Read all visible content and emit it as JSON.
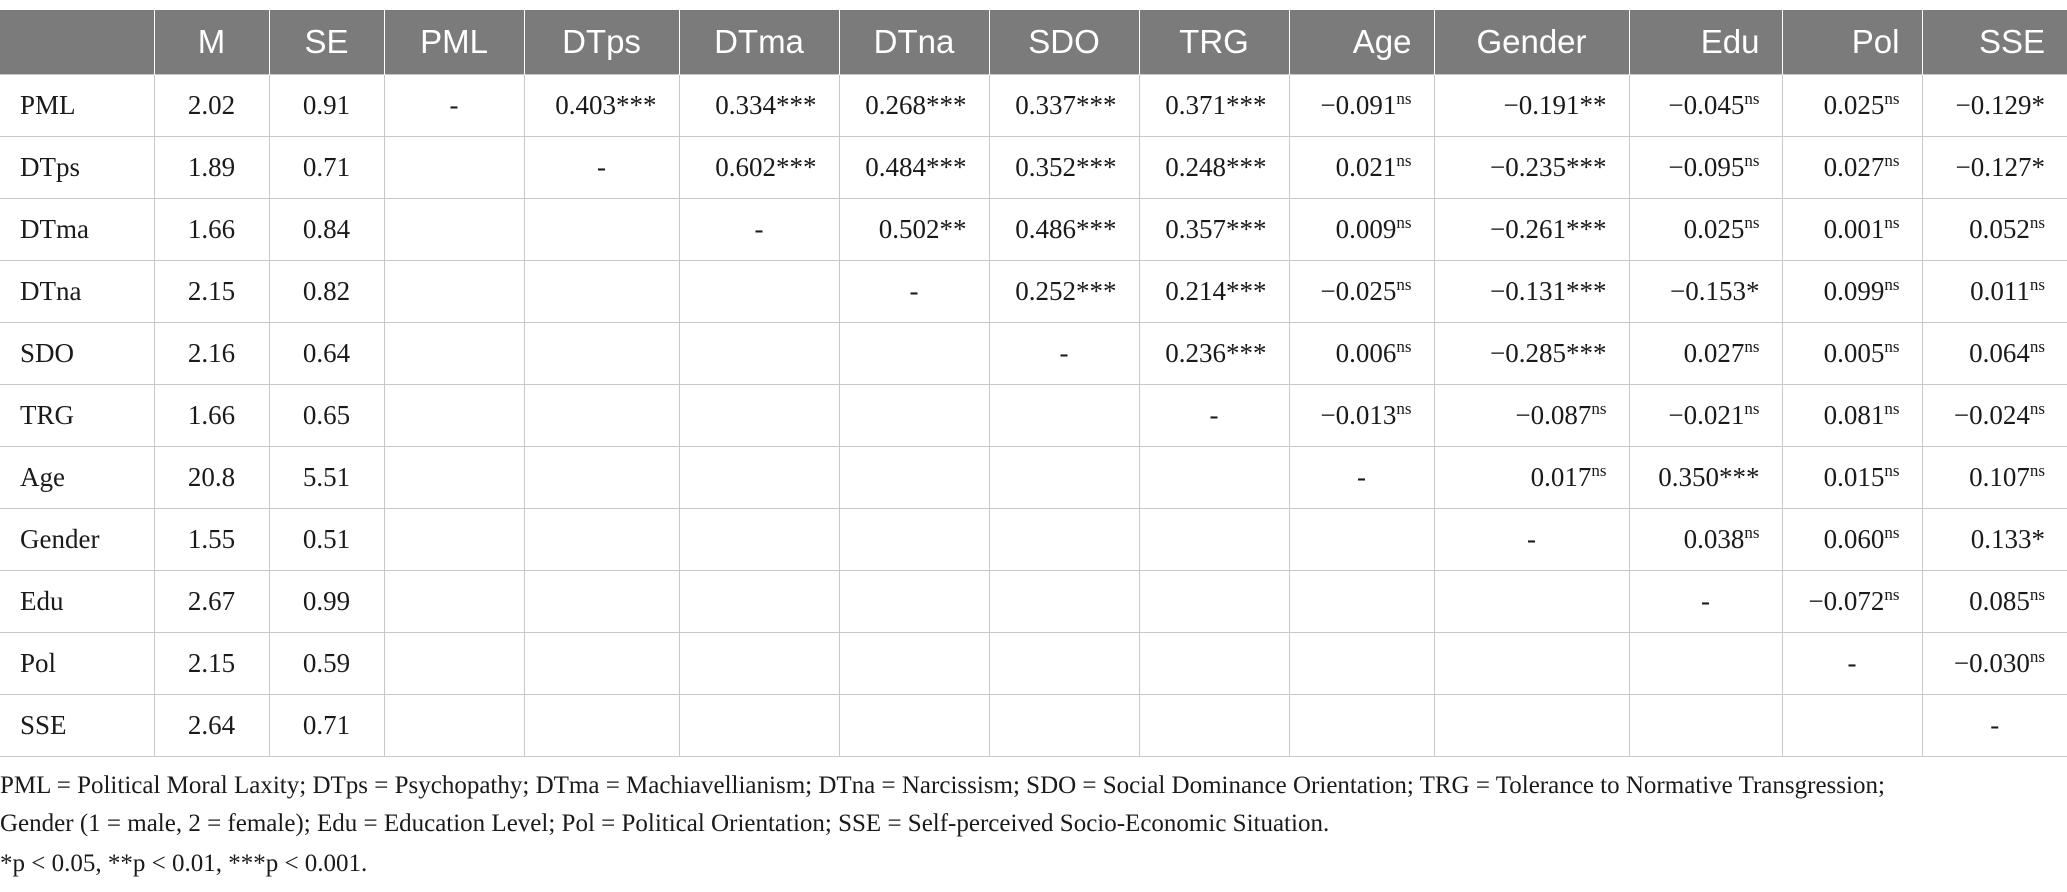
{
  "table": {
    "columns": [
      "",
      "M",
      "SE",
      "PML",
      "DTps",
      "DTma",
      "DTna",
      "SDO",
      "TRG",
      "Age",
      "Gender",
      "Edu",
      "Pol",
      "SSE"
    ],
    "rows": [
      {
        "label": "PML",
        "m": "2.02",
        "se": "0.91",
        "cells": [
          {
            "v": "-"
          },
          {
            "v": "0.403",
            "s": "***"
          },
          {
            "v": "0.334",
            "s": "***"
          },
          {
            "v": "0.268",
            "s": "***"
          },
          {
            "v": "0.337",
            "s": "***"
          },
          {
            "v": "0.371",
            "s": "***"
          },
          {
            "v": "−0.091",
            "s": "ns",
            "sup": true
          },
          {
            "v": "−0.191",
            "s": "**"
          },
          {
            "v": "−0.045",
            "s": "ns",
            "sup": true
          },
          {
            "v": "0.025",
            "s": "ns",
            "sup": true
          },
          {
            "v": "−0.129",
            "s": "*"
          }
        ]
      },
      {
        "label": "DTps",
        "m": "1.89",
        "se": "0.71",
        "cells": [
          {
            "v": ""
          },
          {
            "v": "-"
          },
          {
            "v": "0.602",
            "s": "***"
          },
          {
            "v": "0.484",
            "s": "***"
          },
          {
            "v": "0.352",
            "s": "***"
          },
          {
            "v": "0.248",
            "s": "***"
          },
          {
            "v": "0.021",
            "s": "ns",
            "sup": true
          },
          {
            "v": "−0.235",
            "s": "***"
          },
          {
            "v": "−0.095",
            "s": "ns",
            "sup": true
          },
          {
            "v": "0.027",
            "s": "ns",
            "sup": true
          },
          {
            "v": "−0.127",
            "s": "*"
          }
        ]
      },
      {
        "label": "DTma",
        "m": "1.66",
        "se": "0.84",
        "cells": [
          {
            "v": ""
          },
          {
            "v": ""
          },
          {
            "v": "-"
          },
          {
            "v": "0.502",
            "s": "**"
          },
          {
            "v": "0.486",
            "s": "***"
          },
          {
            "v": "0.357",
            "s": "***"
          },
          {
            "v": "0.009",
            "s": "ns",
            "sup": true
          },
          {
            "v": "−0.261",
            "s": "***"
          },
          {
            "v": "0.025",
            "s": "ns",
            "sup": true
          },
          {
            "v": "0.001",
            "s": "ns",
            "sup": true
          },
          {
            "v": "0.052",
            "s": "ns",
            "sup": true
          }
        ]
      },
      {
        "label": "DTna",
        "m": "2.15",
        "se": "0.82",
        "cells": [
          {
            "v": ""
          },
          {
            "v": ""
          },
          {
            "v": ""
          },
          {
            "v": "-"
          },
          {
            "v": "0.252",
            "s": "***"
          },
          {
            "v": "0.214",
            "s": "***"
          },
          {
            "v": "−0.025",
            "s": "ns",
            "sup": true
          },
          {
            "v": "−0.131",
            "s": "***"
          },
          {
            "v": "−0.153",
            "s": "*"
          },
          {
            "v": "0.099",
            "s": "ns",
            "sup": true
          },
          {
            "v": "0.011",
            "s": "ns",
            "sup": true
          }
        ]
      },
      {
        "label": "SDO",
        "m": "2.16",
        "se": "0.64",
        "cells": [
          {
            "v": ""
          },
          {
            "v": ""
          },
          {
            "v": ""
          },
          {
            "v": ""
          },
          {
            "v": "-"
          },
          {
            "v": "0.236",
            "s": "***"
          },
          {
            "v": "0.006",
            "s": "ns",
            "sup": true
          },
          {
            "v": "−0.285",
            "s": "***"
          },
          {
            "v": "0.027",
            "s": "ns",
            "sup": true
          },
          {
            "v": "0.005",
            "s": "ns",
            "sup": true
          },
          {
            "v": "0.064",
            "s": "ns",
            "sup": true
          }
        ]
      },
      {
        "label": "TRG",
        "m": "1.66",
        "se": "0.65",
        "cells": [
          {
            "v": ""
          },
          {
            "v": ""
          },
          {
            "v": ""
          },
          {
            "v": ""
          },
          {
            "v": ""
          },
          {
            "v": "-"
          },
          {
            "v": "−0.013",
            "s": "ns",
            "sup": true
          },
          {
            "v": "−0.087",
            "s": "ns",
            "sup": true
          },
          {
            "v": "−0.021",
            "s": "ns",
            "sup": true
          },
          {
            "v": "0.081",
            "s": "ns",
            "sup": true
          },
          {
            "v": "−0.024",
            "s": "ns",
            "sup": true
          }
        ]
      },
      {
        "label": "Age",
        "m": "20.8",
        "se": "5.51",
        "cells": [
          {
            "v": ""
          },
          {
            "v": ""
          },
          {
            "v": ""
          },
          {
            "v": ""
          },
          {
            "v": ""
          },
          {
            "v": ""
          },
          {
            "v": "-"
          },
          {
            "v": "0.017",
            "s": "ns",
            "sup": true
          },
          {
            "v": "0.350",
            "s": "***"
          },
          {
            "v": "0.015",
            "s": "ns",
            "sup": true
          },
          {
            "v": "0.107",
            "s": "ns",
            "sup": true
          }
        ]
      },
      {
        "label": "Gender",
        "m": "1.55",
        "se": "0.51",
        "cells": [
          {
            "v": ""
          },
          {
            "v": ""
          },
          {
            "v": ""
          },
          {
            "v": ""
          },
          {
            "v": ""
          },
          {
            "v": ""
          },
          {
            "v": ""
          },
          {
            "v": "-"
          },
          {
            "v": "0.038",
            "s": "ns",
            "sup": true
          },
          {
            "v": "0.060",
            "s": "ns",
            "sup": true
          },
          {
            "v": "0.133",
            "s": "*"
          }
        ]
      },
      {
        "label": "Edu",
        "m": "2.67",
        "se": "0.99",
        "cells": [
          {
            "v": ""
          },
          {
            "v": ""
          },
          {
            "v": ""
          },
          {
            "v": ""
          },
          {
            "v": ""
          },
          {
            "v": ""
          },
          {
            "v": ""
          },
          {
            "v": ""
          },
          {
            "v": "-"
          },
          {
            "v": "−0.072",
            "s": "ns",
            "sup": true
          },
          {
            "v": "0.085",
            "s": "ns",
            "sup": true
          }
        ]
      },
      {
        "label": "Pol",
        "m": "2.15",
        "se": "0.59",
        "cells": [
          {
            "v": ""
          },
          {
            "v": ""
          },
          {
            "v": ""
          },
          {
            "v": ""
          },
          {
            "v": ""
          },
          {
            "v": ""
          },
          {
            "v": ""
          },
          {
            "v": ""
          },
          {
            "v": ""
          },
          {
            "v": "-"
          },
          {
            "v": "−0.030",
            "s": "ns",
            "sup": true
          }
        ]
      },
      {
        "label": "SSE",
        "m": "2.64",
        "se": "0.71",
        "cells": [
          {
            "v": ""
          },
          {
            "v": ""
          },
          {
            "v": ""
          },
          {
            "v": ""
          },
          {
            "v": ""
          },
          {
            "v": ""
          },
          {
            "v": ""
          },
          {
            "v": ""
          },
          {
            "v": ""
          },
          {
            "v": ""
          },
          {
            "v": "-"
          }
        ]
      }
    ]
  },
  "notes": {
    "line1": "PML = Political Moral Laxity; DTps = Psychopathy; DTma = Machiavellianism; DTna = Narcissism; SDO = Social Dominance Orientation; TRG = Tolerance to Normative Transgression;",
    "line2": "Gender (1 = male, 2 = female); Edu = Education Level; Pol = Political Orientation; SSE = Self-perceived Socio-Economic Situation.",
    "line3": "*p < 0.05, **p < 0.01, ***p < 0.001."
  },
  "colors": {
    "header_bg": "#7b7b7b",
    "header_text": "#ffffff",
    "grid": "#c8c8c8"
  }
}
